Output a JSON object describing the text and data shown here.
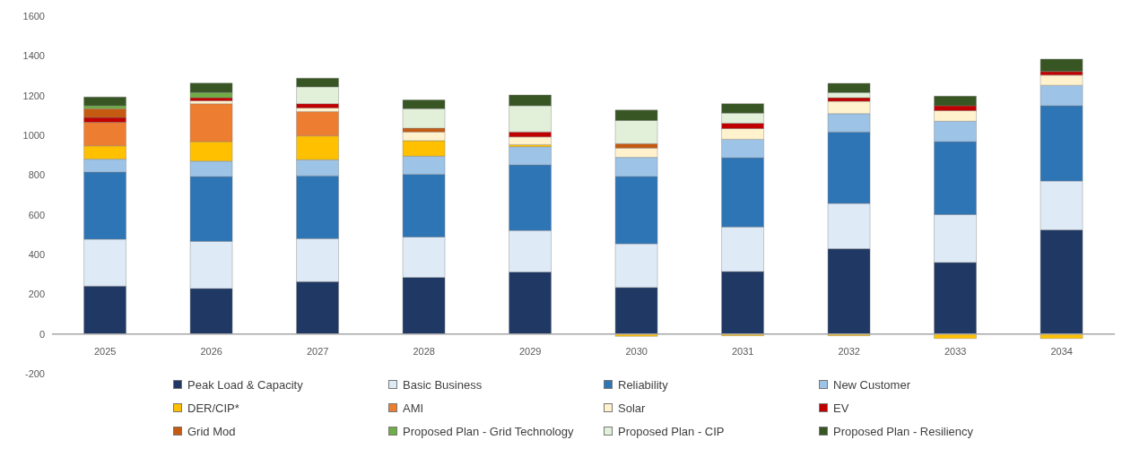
{
  "chart_data": {
    "type": "bar",
    "stacked": true,
    "categories": [
      "2025",
      "2026",
      "2027",
      "2028",
      "2029",
      "2030",
      "2031",
      "2032",
      "2033",
      "2034"
    ],
    "ylim": [
      -200,
      1600
    ],
    "yticks": [
      -200,
      0,
      200,
      400,
      600,
      800,
      1000,
      1200,
      1400,
      1600
    ],
    "legend": "bottom",
    "series": [
      {
        "name": "Peak Load & Capacity",
        "color": "#203864",
        "values": [
          241,
          229,
          263,
          285,
          312,
          234,
          314,
          429,
          360,
          524
        ]
      },
      {
        "name": "Basic Business",
        "color": "#deebf7",
        "values": [
          236,
          237,
          217,
          203,
          209,
          220,
          225,
          228,
          241,
          246
        ]
      },
      {
        "name": "Reliability",
        "color": "#2e75b6",
        "values": [
          338,
          326,
          316,
          316,
          330,
          339,
          348,
          360,
          367,
          379
        ]
      },
      {
        "name": "New Customer",
        "color": "#9dc3e6",
        "values": [
          65,
          78,
          81,
          91,
          92,
          96,
          93,
          92,
          103,
          103
        ]
      },
      {
        "name": "DER/CIP*",
        "color": "#ffc000",
        "values": [
          67,
          98,
          120,
          78,
          10,
          -12,
          -9,
          -9,
          -23,
          -23
        ]
      },
      {
        "name": "AMI",
        "color": "#ed7d31",
        "values": [
          118,
          191,
          122,
          null,
          null,
          null,
          null,
          null,
          null,
          null
        ]
      },
      {
        "name": "Solar",
        "color": "#fff2cc",
        "values": [
          null,
          15,
          19,
          44,
          39,
          47,
          54,
          62,
          53,
          51
        ]
      },
      {
        "name": "EV",
        "color": "#c00000",
        "values": [
          25,
          15,
          21,
          null,
          25,
          null,
          27,
          18,
          25,
          18
        ]
      },
      {
        "name": "Grid Mod",
        "color": "#c55a11",
        "values": [
          44,
          null,
          null,
          19,
          null,
          22,
          null,
          null,
          null,
          null
        ]
      },
      {
        "name": "Proposed Plan - Grid Technology",
        "color": "#70ad47",
        "values": [
          15,
          26,
          null,
          null,
          null,
          null,
          null,
          null,
          null,
          null
        ]
      },
      {
        "name": "Proposed Plan - CIP",
        "color": "#e2f0d9",
        "values": [
          null,
          null,
          85,
          98,
          132,
          117,
          51,
          26,
          null,
          null
        ]
      },
      {
        "name": "Proposed Plan - Resiliency",
        "color": "#375623",
        "values": [
          44,
          48,
          44,
          44,
          54,
          52,
          47,
          47,
          48,
          63
        ]
      }
    ]
  }
}
